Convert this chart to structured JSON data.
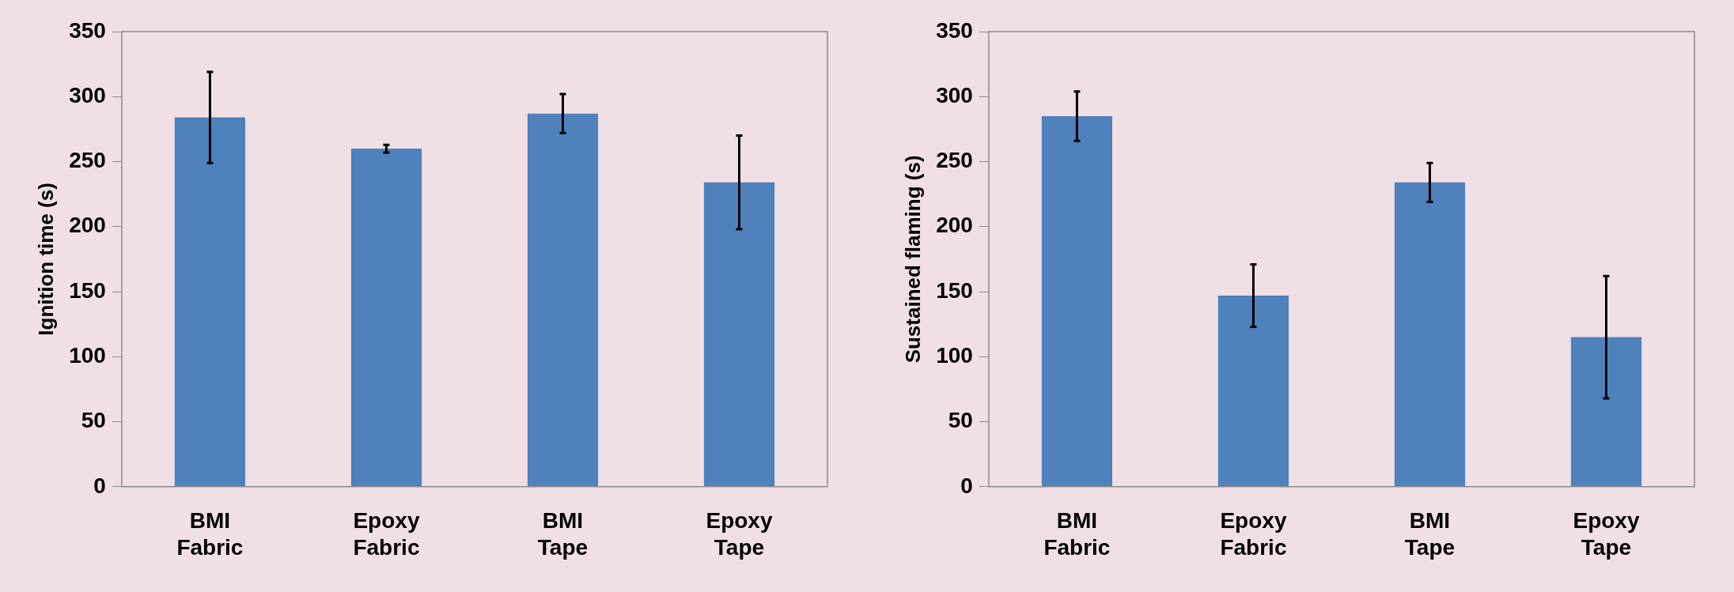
{
  "chart_data": [
    {
      "type": "bar",
      "ylabel": "Ignition time (s)",
      "categories": [
        "BMI Fabric",
        "Epoxy Fabric",
        "BMI Tape",
        "Epoxy Tape"
      ],
      "values": [
        284,
        260,
        287,
        234
      ],
      "errors": [
        35,
        3,
        15,
        36
      ],
      "color": "#4f81bd",
      "ylim": [
        0,
        350
      ],
      "yticks": [
        0,
        50,
        100,
        150,
        200,
        250,
        300,
        350
      ],
      "grid": false,
      "legend": false
    },
    {
      "type": "bar",
      "ylabel": "Sustained flaming (s)",
      "categories": [
        "BMI Fabric",
        "Epoxy Fabric",
        "BMI Tape",
        "Epoxy Tape"
      ],
      "values": [
        285,
        147,
        234,
        115
      ],
      "errors": [
        19,
        24,
        15,
        47
      ],
      "color": "#4f81bd",
      "ylim": [
        0,
        350
      ],
      "yticks": [
        0,
        50,
        100,
        150,
        200,
        250,
        300,
        350
      ],
      "grid": false,
      "legend": false
    }
  ]
}
